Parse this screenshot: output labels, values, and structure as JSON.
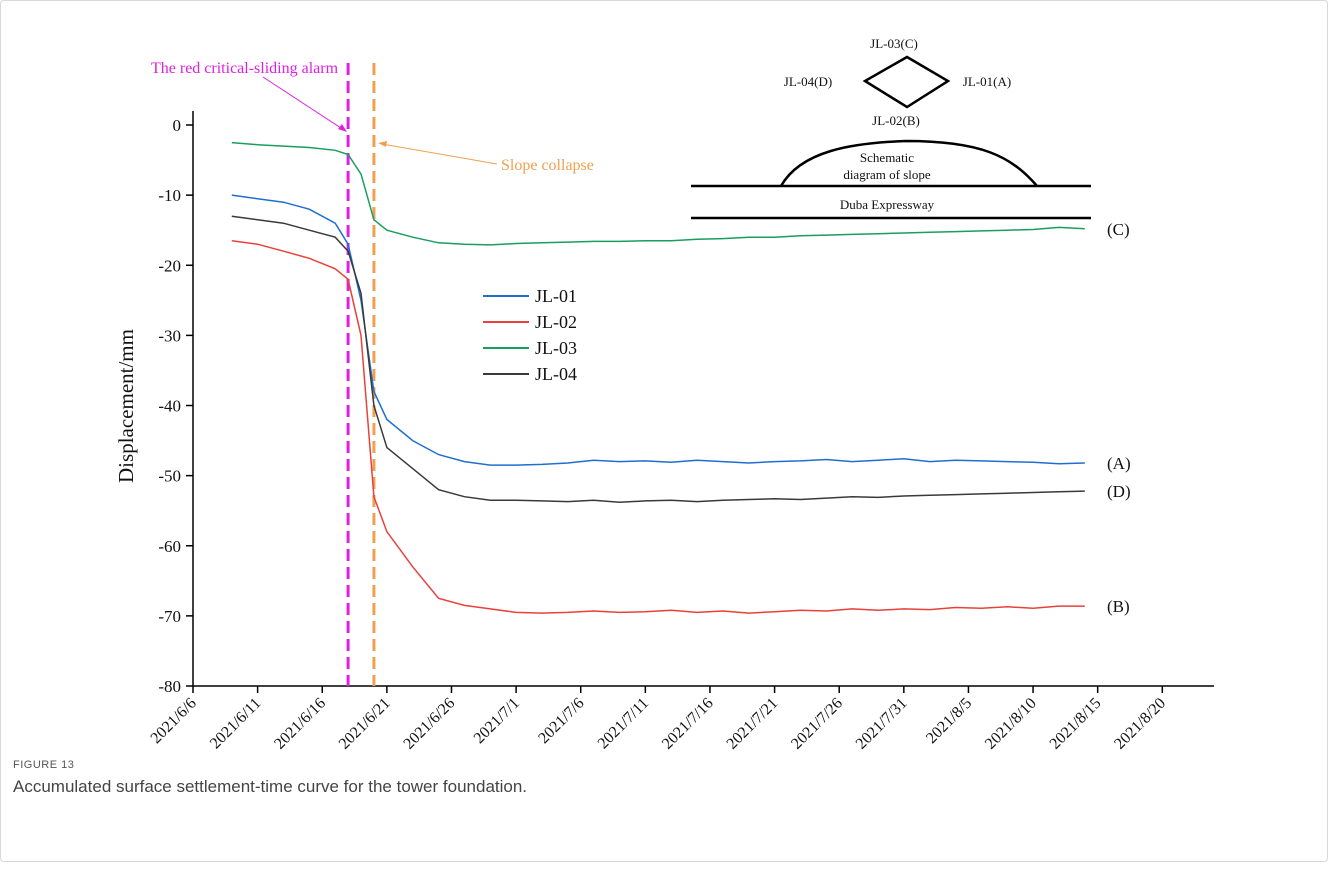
{
  "chart_data": {
    "type": "line",
    "y_label": "Displacement/mm",
    "x": [
      "2021/6/9",
      "2021/6/11",
      "2021/6/13",
      "2021/6/15",
      "2021/6/17",
      "2021/6/18",
      "2021/6/19",
      "2021/6/20",
      "2021/6/21",
      "2021/6/23",
      "2021/6/25",
      "2021/6/27",
      "2021/6/29",
      "2021/7/1",
      "2021/7/3",
      "2021/7/5",
      "2021/7/7",
      "2021/7/9",
      "2021/7/11",
      "2021/7/13",
      "2021/7/15",
      "2021/7/17",
      "2021/7/19",
      "2021/7/21",
      "2021/7/23",
      "2021/7/25",
      "2021/7/27",
      "2021/7/29",
      "2021/7/31",
      "2021/8/2",
      "2021/8/4",
      "2021/8/6",
      "2021/8/8",
      "2021/8/10",
      "2021/8/12",
      "2021/8/14"
    ],
    "series": [
      {
        "name": "JL-01",
        "color": "#1f6fd0",
        "end_label": "(A)",
        "values": [
          -10,
          -10.5,
          -11,
          -12,
          -14,
          -17,
          -25,
          -38,
          -42,
          -45,
          -47,
          -48,
          -48.5,
          -48.5,
          -48.4,
          -48.2,
          -47.8,
          -48,
          -47.9,
          -48.1,
          -47.8,
          -48,
          -48.2,
          -48,
          -47.9,
          -47.7,
          -48,
          -47.8,
          -47.6,
          -48,
          -47.8,
          -47.9,
          -48,
          -48.1,
          -48.3,
          -48.2
        ]
      },
      {
        "name": "JL-02",
        "color": "#e8413c",
        "end_label": "(B)",
        "values": [
          -16.5,
          -17,
          -18,
          -19,
          -20.5,
          -22,
          -30,
          -53,
          -58,
          -63,
          -67.5,
          -68.5,
          -69,
          -69.5,
          -69.6,
          -69.5,
          -69.3,
          -69.5,
          -69.4,
          -69.2,
          -69.5,
          -69.3,
          -69.6,
          -69.4,
          -69.2,
          -69.3,
          -69,
          -69.2,
          -69,
          -69.1,
          -68.8,
          -68.9,
          -68.7,
          -68.9,
          -68.6,
          -68.6
        ]
      },
      {
        "name": "JL-03",
        "color": "#1a9e5e",
        "end_label": "(C)",
        "values": [
          -2.5,
          -2.8,
          -3,
          -3.2,
          -3.6,
          -4.2,
          -7,
          -13.5,
          -15,
          -16,
          -16.8,
          -17,
          -17.1,
          -16.9,
          -16.8,
          -16.7,
          -16.6,
          -16.6,
          -16.5,
          -16.5,
          -16.3,
          -16.2,
          -16,
          -16,
          -15.8,
          -15.7,
          -15.6,
          -15.5,
          -15.4,
          -15.3,
          -15.2,
          -15.1,
          -15,
          -14.9,
          -14.6,
          -14.8
        ]
      },
      {
        "name": "JL-04",
        "color": "#3a3a3a",
        "end_label": "(D)",
        "values": [
          -13,
          -13.5,
          -14,
          -15,
          -16,
          -18,
          -24,
          -40,
          -46,
          -49,
          -52,
          -53,
          -53.5,
          -53.5,
          -53.6,
          -53.7,
          -53.5,
          -53.8,
          -53.6,
          -53.5,
          -53.7,
          -53.5,
          -53.4,
          -53.3,
          -53.4,
          -53.2,
          -53,
          -53.1,
          -52.9,
          -52.8,
          -52.7,
          -52.6,
          -52.5,
          -52.4,
          -52.3,
          -52.2
        ]
      }
    ],
    "xlim": [
      "2021/6/6",
      "2021/8/24"
    ],
    "xticks": [
      "2021/6/6",
      "2021/6/11",
      "2021/6/16",
      "2021/6/21",
      "2021/6/26",
      "2021/7/1",
      "2021/7/6",
      "2021/7/11",
      "2021/7/16",
      "2021/7/21",
      "2021/7/26",
      "2021/7/31",
      "2021/8/5",
      "2021/8/10",
      "2021/8/15",
      "2021/8/20"
    ],
    "ylim": [
      -80,
      2
    ],
    "yticks": [
      -80,
      -70,
      -60,
      -50,
      -40,
      -30,
      -20,
      -10,
      0
    ],
    "annotations": [
      {
        "text": "The red critical-sliding alarm",
        "x": "2021/6/18",
        "color": "#e020e0"
      },
      {
        "text": "Slope collapse",
        "x": "2021/6/20",
        "color": "#f0a050"
      }
    ],
    "inset": {
      "labels": [
        "JL-03(C)",
        "JL-04(D)",
        "JL-01(A)",
        "JL-02(B)",
        "Schematic",
        "diagram of slope",
        "Duba Expressway"
      ]
    }
  },
  "caption": {
    "figure": "FIGURE 13",
    "text": "Accumulated surface settlement-time curve for the tower foundation."
  }
}
